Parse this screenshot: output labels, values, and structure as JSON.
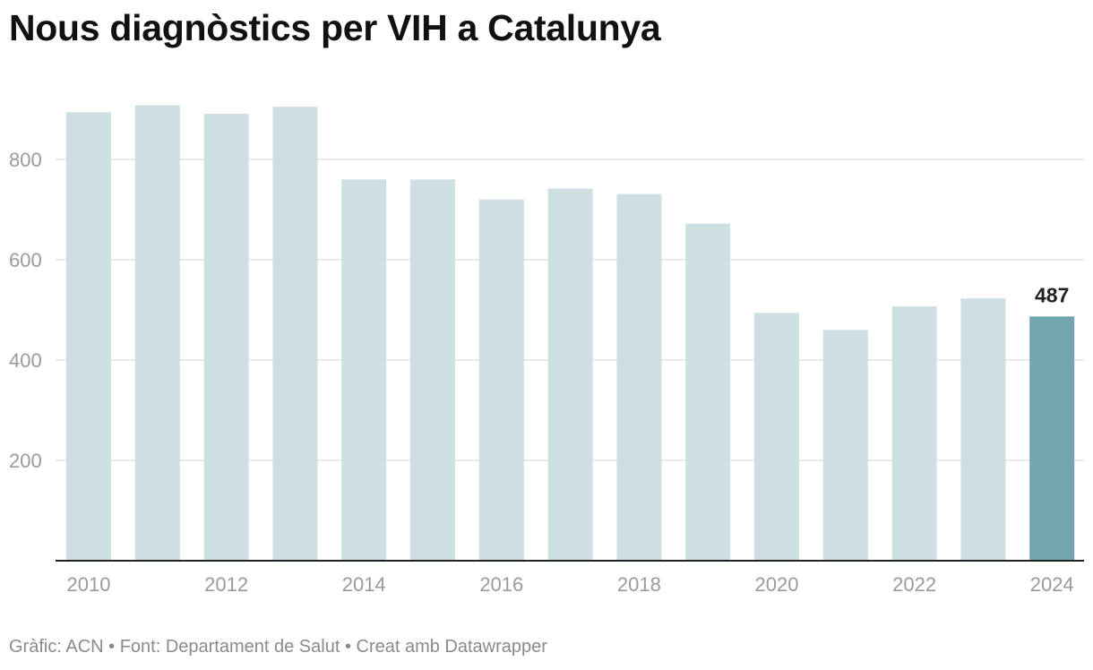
{
  "chart_data": {
    "type": "bar",
    "title": "Nous diagnòstics per VIH a Catalunya",
    "xlabel": "",
    "ylabel": "",
    "categories": [
      "2010",
      "2011",
      "2012",
      "2013",
      "2014",
      "2015",
      "2016",
      "2017",
      "2018",
      "2019",
      "2020",
      "2021",
      "2022",
      "2023",
      "2024"
    ],
    "x_tick_labels": [
      "2010",
      "2012",
      "2014",
      "2016",
      "2018",
      "2020",
      "2022",
      "2024"
    ],
    "y_ticks": [
      200,
      400,
      600,
      800
    ],
    "ylim": [
      0,
      950
    ],
    "grid": true,
    "series": [
      {
        "values": [
          894,
          908,
          891,
          905,
          760,
          760,
          720,
          742,
          731,
          672,
          494,
          460,
          507,
          523,
          487
        ]
      }
    ],
    "highlight": {
      "category": "2024",
      "label": "487"
    },
    "colors": {
      "bar": "#cddfe3",
      "highlight_bar": "#72a5b0",
      "grid": "#e2e2e2",
      "axis": "#222222"
    }
  },
  "footer": "Gràfic: ACN • Font: Departament de Salut • Creat amb Datawrapper"
}
